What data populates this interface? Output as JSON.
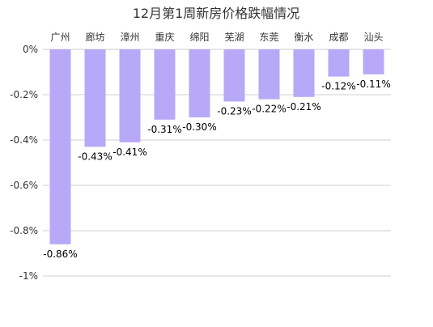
{
  "chart_data": {
    "type": "bar",
    "title": "12月第1周新房价格跌幅情况",
    "categories": [
      "广州",
      "廊坊",
      "漳州",
      "重庆",
      "绵阳",
      "芜湖",
      "东莞",
      "衡水",
      "成都",
      "汕头"
    ],
    "values": [
      -0.86,
      -0.43,
      -0.41,
      -0.31,
      -0.3,
      -0.23,
      -0.22,
      -0.21,
      -0.12,
      -0.11
    ],
    "data_labels": [
      "-0.86%",
      "-0.43%",
      "-0.41%",
      "-0.31%",
      "-0.30%",
      "-0.23%",
      "-0.22%",
      "-0.21%",
      "-0.12%",
      "-0.11%"
    ],
    "yticks": [
      0,
      -0.2,
      -0.4,
      -0.6,
      -0.8,
      -1
    ],
    "ytick_labels": [
      "0%",
      "-0.2%",
      "-0.4%",
      "-0.6%",
      "-0.8%",
      "-1%"
    ],
    "ylim": [
      -1,
      0
    ],
    "xlabel": "",
    "ylabel": "",
    "category_axis_position": "top",
    "grid": true,
    "legend": false,
    "bar_color": "#b7a9f7",
    "grid_color": "#cfcfcf"
  }
}
